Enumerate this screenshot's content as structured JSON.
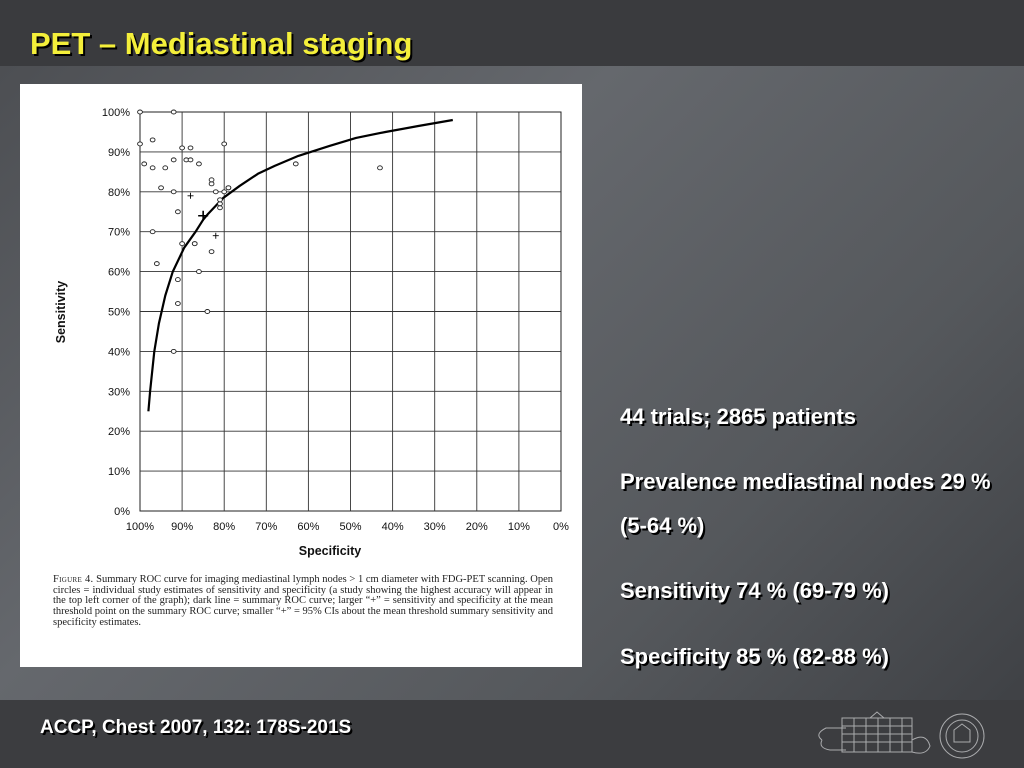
{
  "slide": {
    "title": "PET – Mediastinal staging",
    "bullets": [
      "44 trials; 2865 patients",
      "Prevalence mediastinal nodes 29 % (5-64 %)",
      "Sensitivity 74 % (69-79 %)",
      "Specificity 85 % (82-88 %)"
    ],
    "footer": "ACCP, Chest 2007, 132: 178S-201S"
  },
  "figure": {
    "caption_lead": "Figure 4.",
    "caption_body": "Summary ROC curve for imaging mediastinal lymph nodes > 1 cm diameter with FDG-PET scanning. Open circles = individual study estimates of sensitivity and specificity (a study showing the highest accuracy will appear in the top left corner of the graph); dark line = summary ROC curve; larger “+” = sensitivity and specificity at the mean threshold point on the summary ROC curve; smaller “+” = 95% CIs about the mean threshold summary sensitivity and specificity estimates."
  },
  "colors": {
    "title": "#f4ef3a",
    "text": "#ffffff",
    "band": "#3a3b3e"
  },
  "chart_data": {
    "type": "scatter",
    "xlabel": "Specificity",
    "ylabel": "Sensitivity",
    "x_reversed": true,
    "xlim": [
      0,
      100
    ],
    "ylim": [
      0,
      100
    ],
    "x_ticks": [
      "100%",
      "90%",
      "80%",
      "70%",
      "60%",
      "50%",
      "40%",
      "30%",
      "20%",
      "10%",
      "0%"
    ],
    "y_ticks": [
      "0%",
      "10%",
      "20%",
      "30%",
      "40%",
      "50%",
      "60%",
      "70%",
      "80%",
      "90%",
      "100%"
    ],
    "grid": true,
    "series": [
      {
        "marker": "circle",
        "x": [
          100,
          92,
          100,
          97,
          97,
          95,
          97,
          96,
          92,
          92,
          90,
          94,
          91,
          89,
          88,
          88,
          87,
          87,
          86,
          80,
          83,
          83,
          82,
          81,
          81,
          81,
          79,
          83,
          86,
          63,
          43,
          99,
          84,
          91,
          91,
          92,
          90,
          80,
          79
        ],
        "y": [
          100,
          100,
          92,
          93,
          86,
          81,
          70,
          62,
          88,
          80,
          91,
          86,
          75,
          88,
          91,
          88,
          67,
          67,
          60,
          92,
          82,
          83,
          80,
          77,
          78,
          76,
          81,
          65,
          87,
          87,
          86,
          87,
          50,
          58,
          52,
          40,
          67,
          80,
          81
        ]
      },
      {
        "marker": "plus-large",
        "x": [
          85
        ],
        "y": [
          74
        ]
      },
      {
        "marker": "plus-small",
        "x": [
          88,
          82
        ],
        "y": [
          79,
          69
        ]
      },
      {
        "marker": "curve",
        "x": [
          98,
          97.6,
          96.6,
          95.5,
          94,
          92.2,
          89.5,
          86.8,
          85,
          83.8,
          80.2,
          76.3,
          72,
          68,
          62.4,
          55,
          48.7,
          41.7,
          33.9,
          25.7
        ],
        "y": [
          25,
          30,
          40,
          47,
          54,
          60,
          66,
          70,
          73,
          74.5,
          78.5,
          81.5,
          84.5,
          86.5,
          89,
          91.5,
          93.5,
          95,
          96.5,
          98
        ]
      }
    ]
  }
}
